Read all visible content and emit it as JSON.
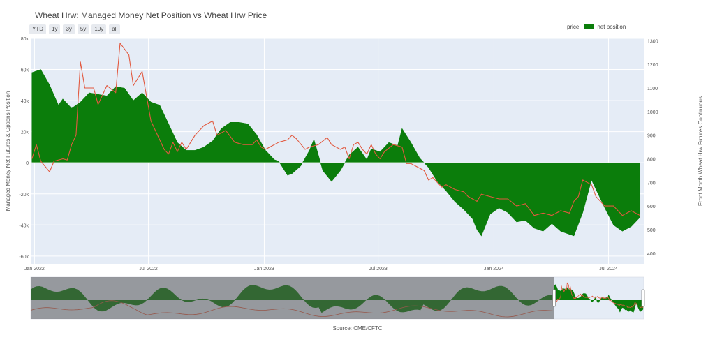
{
  "title": "Wheat Hrw: Managed Money Net Position vs Wheat Hrw Price",
  "range_buttons": [
    "YTD",
    "1y",
    "3y",
    "5y",
    "10y",
    "all"
  ],
  "legend": {
    "price": "price",
    "net_position": "net position"
  },
  "source": "Source: CME/CFTC",
  "colors": {
    "price": "#e2593f",
    "net_position": "#0b7d0b",
    "plot_bg": "#e5ecf6",
    "grid": "#ffffff"
  },
  "chart_data": {
    "type": "area",
    "title": "Wheat Hrw: Managed Money Net Position vs Wheat Hrw Price",
    "ylabel": "Managed Money Net Futures & Options Position",
    "y2label": "Front Month Wheat Hrw Futures Continuous",
    "ylim": [
      -65000,
      80000
    ],
    "y2lim": [
      355,
      1310
    ],
    "xlim": [
      "2021-12-26",
      "2024-08-26"
    ],
    "y_ticks": [
      "-60k",
      "-40k",
      "-20k",
      "0",
      "20k",
      "40k",
      "60k",
      "80k"
    ],
    "y2_ticks": [
      "400",
      "500",
      "600",
      "700",
      "800",
      "900",
      "1000",
      "1100",
      "1200",
      "1300"
    ],
    "x_ticks": [
      {
        "date": "2022-01-01",
        "label": "Jan 2022"
      },
      {
        "date": "2022-07-01",
        "label": "Jul 2022"
      },
      {
        "date": "2023-01-01",
        "label": "Jan 2023"
      },
      {
        "date": "2023-07-01",
        "label": "Jul 2023"
      },
      {
        "date": "2024-01-01",
        "label": "Jan 2024"
      },
      {
        "date": "2024-07-01",
        "label": "Jul 2024"
      }
    ],
    "grid": true,
    "legend_position": "top-right",
    "series": [
      {
        "name": "net position",
        "axis": "left",
        "points": [
          [
            "2021-12-28",
            58000
          ],
          [
            "2022-01-11",
            60000
          ],
          [
            "2022-01-25",
            50000
          ],
          [
            "2022-02-08",
            37000
          ],
          [
            "2022-02-15",
            41000
          ],
          [
            "2022-03-01",
            35000
          ],
          [
            "2022-03-15",
            39000
          ],
          [
            "2022-03-29",
            45000
          ],
          [
            "2022-04-12",
            44000
          ],
          [
            "2022-04-26",
            43000
          ],
          [
            "2022-05-10",
            49000
          ],
          [
            "2022-05-24",
            48000
          ],
          [
            "2022-06-07",
            40000
          ],
          [
            "2022-06-21",
            45000
          ],
          [
            "2022-07-05",
            39000
          ],
          [
            "2022-07-19",
            37000
          ],
          [
            "2022-08-02",
            25000
          ],
          [
            "2022-08-16",
            13000
          ],
          [
            "2022-08-30",
            8000
          ],
          [
            "2022-09-13",
            8000
          ],
          [
            "2022-09-27",
            10000
          ],
          [
            "2022-10-11",
            14000
          ],
          [
            "2022-10-25",
            22000
          ],
          [
            "2022-11-08",
            26000
          ],
          [
            "2022-11-22",
            26000
          ],
          [
            "2022-12-06",
            25000
          ],
          [
            "2022-12-20",
            18000
          ],
          [
            "2023-01-03",
            8000
          ],
          [
            "2023-01-17",
            2000
          ],
          [
            "2023-01-24",
            1000
          ],
          [
            "2023-02-07",
            -8000
          ],
          [
            "2023-02-14",
            -7000
          ],
          [
            "2023-02-28",
            -2000
          ],
          [
            "2023-03-14",
            8000
          ],
          [
            "2023-03-21",
            15000
          ],
          [
            "2023-04-04",
            -5000
          ],
          [
            "2023-04-18",
            -12000
          ],
          [
            "2023-05-02",
            -5000
          ],
          [
            "2023-05-16",
            5000
          ],
          [
            "2023-05-30",
            10000
          ],
          [
            "2023-06-13",
            2000
          ],
          [
            "2023-06-20",
            9000
          ],
          [
            "2023-07-04",
            7000
          ],
          [
            "2023-07-18",
            13000
          ],
          [
            "2023-08-01",
            11000
          ],
          [
            "2023-08-08",
            22000
          ],
          [
            "2023-08-22",
            13000
          ],
          [
            "2023-09-05",
            3000
          ],
          [
            "2023-09-19",
            -3000
          ],
          [
            "2023-10-03",
            -12000
          ],
          [
            "2023-10-17",
            -18000
          ],
          [
            "2023-10-31",
            -25000
          ],
          [
            "2023-11-14",
            -30000
          ],
          [
            "2023-11-28",
            -36000
          ],
          [
            "2023-12-05",
            -43000
          ],
          [
            "2023-12-12",
            -47000
          ],
          [
            "2023-12-26",
            -33000
          ],
          [
            "2024-01-09",
            -29000
          ],
          [
            "2024-01-23",
            -32000
          ],
          [
            "2024-02-06",
            -38000
          ],
          [
            "2024-02-20",
            -37000
          ],
          [
            "2024-03-05",
            -42000
          ],
          [
            "2024-03-19",
            -44000
          ],
          [
            "2024-04-02",
            -39000
          ],
          [
            "2024-04-16",
            -44000
          ],
          [
            "2024-04-30",
            -46000
          ],
          [
            "2024-05-07",
            -47000
          ],
          [
            "2024-05-21",
            -32000
          ],
          [
            "2024-06-04",
            -11000
          ],
          [
            "2024-06-11",
            -17000
          ],
          [
            "2024-06-25",
            -29000
          ],
          [
            "2024-07-09",
            -40000
          ],
          [
            "2024-07-23",
            -44000
          ],
          [
            "2024-08-06",
            -41000
          ],
          [
            "2024-08-20",
            -35000
          ]
        ]
      },
      {
        "name": "price",
        "axis": "right",
        "points": [
          [
            "2021-12-28",
            800
          ],
          [
            "2022-01-04",
            860
          ],
          [
            "2022-01-11",
            790
          ],
          [
            "2022-01-25",
            745
          ],
          [
            "2022-02-01",
            790
          ],
          [
            "2022-02-15",
            800
          ],
          [
            "2022-02-22",
            795
          ],
          [
            "2022-03-01",
            860
          ],
          [
            "2022-03-08",
            900
          ],
          [
            "2022-03-15",
            1210
          ],
          [
            "2022-03-22",
            1100
          ],
          [
            "2022-04-05",
            1100
          ],
          [
            "2022-04-12",
            1030
          ],
          [
            "2022-04-26",
            1110
          ],
          [
            "2022-05-10",
            1080
          ],
          [
            "2022-05-17",
            1290
          ],
          [
            "2022-05-31",
            1240
          ],
          [
            "2022-06-07",
            1110
          ],
          [
            "2022-06-21",
            1170
          ],
          [
            "2022-07-05",
            960
          ],
          [
            "2022-07-12",
            920
          ],
          [
            "2022-07-26",
            840
          ],
          [
            "2022-08-02",
            820
          ],
          [
            "2022-08-09",
            870
          ],
          [
            "2022-08-16",
            830
          ],
          [
            "2022-08-23",
            870
          ],
          [
            "2022-08-30",
            840
          ],
          [
            "2022-09-06",
            870
          ],
          [
            "2022-09-13",
            900
          ],
          [
            "2022-09-27",
            940
          ],
          [
            "2022-10-11",
            960
          ],
          [
            "2022-10-18",
            900
          ],
          [
            "2022-11-01",
            920
          ],
          [
            "2022-11-15",
            870
          ],
          [
            "2022-11-29",
            860
          ],
          [
            "2022-12-13",
            860
          ],
          [
            "2022-12-20",
            880
          ],
          [
            "2022-12-27",
            850
          ],
          [
            "2023-01-03",
            840
          ],
          [
            "2023-01-10",
            850
          ],
          [
            "2023-01-24",
            870
          ],
          [
            "2023-02-07",
            880
          ],
          [
            "2023-02-14",
            900
          ],
          [
            "2023-02-21",
            885
          ],
          [
            "2023-03-07",
            840
          ],
          [
            "2023-03-14",
            850
          ],
          [
            "2023-03-28",
            860
          ],
          [
            "2023-04-11",
            890
          ],
          [
            "2023-04-18",
            860
          ],
          [
            "2023-05-02",
            840
          ],
          [
            "2023-05-09",
            850
          ],
          [
            "2023-05-16",
            800
          ],
          [
            "2023-05-23",
            860
          ],
          [
            "2023-05-30",
            870
          ],
          [
            "2023-06-06",
            840
          ],
          [
            "2023-06-13",
            820
          ],
          [
            "2023-06-20",
            860
          ],
          [
            "2023-06-27",
            820
          ],
          [
            "2023-07-04",
            800
          ],
          [
            "2023-07-11",
            830
          ],
          [
            "2023-07-25",
            860
          ],
          [
            "2023-08-08",
            850
          ],
          [
            "2023-08-15",
            780
          ],
          [
            "2023-08-22",
            780
          ],
          [
            "2023-09-05",
            760
          ],
          [
            "2023-09-12",
            750
          ],
          [
            "2023-09-19",
            710
          ],
          [
            "2023-09-26",
            720
          ],
          [
            "2023-10-10",
            680
          ],
          [
            "2023-10-17",
            690
          ],
          [
            "2023-10-31",
            670
          ],
          [
            "2023-11-14",
            660
          ],
          [
            "2023-11-21",
            640
          ],
          [
            "2023-12-05",
            620
          ],
          [
            "2023-12-12",
            650
          ],
          [
            "2023-12-26",
            640
          ],
          [
            "2024-01-09",
            630
          ],
          [
            "2024-01-23",
            630
          ],
          [
            "2024-02-06",
            600
          ],
          [
            "2024-02-20",
            610
          ],
          [
            "2024-03-05",
            560
          ],
          [
            "2024-03-19",
            570
          ],
          [
            "2024-04-02",
            560
          ],
          [
            "2024-04-16",
            580
          ],
          [
            "2024-04-30",
            570
          ],
          [
            "2024-05-07",
            620
          ],
          [
            "2024-05-14",
            640
          ],
          [
            "2024-05-21",
            710
          ],
          [
            "2024-05-28",
            700
          ],
          [
            "2024-06-04",
            690
          ],
          [
            "2024-06-11",
            640
          ],
          [
            "2024-06-25",
            600
          ],
          [
            "2024-07-09",
            600
          ],
          [
            "2024-07-23",
            560
          ],
          [
            "2024-08-06",
            580
          ],
          [
            "2024-08-20",
            560
          ]
        ]
      }
    ]
  },
  "range_slider": {
    "xlim": [
      "2006-06-01",
      "2024-08-26"
    ],
    "selected_range": [
      "2021-12-26",
      "2024-08-26"
    ]
  }
}
